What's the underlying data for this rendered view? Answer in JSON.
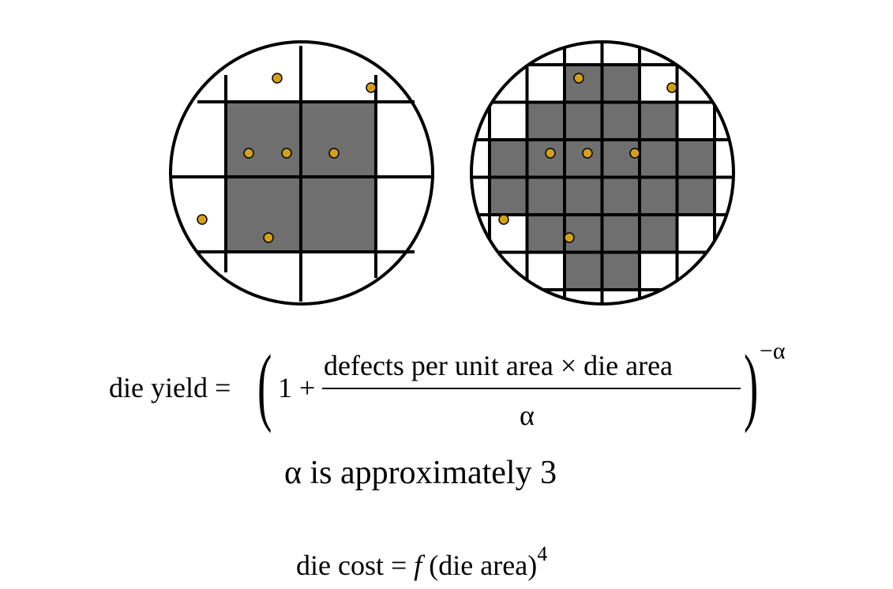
{
  "diagram": {
    "defect_color": "#d4a017",
    "die_fill_color": "#6f6f6f",
    "large_die_wafer": {
      "good_die_count": 4,
      "defect_count": 7
    },
    "small_die_wafer": {
      "good_die_count": 24,
      "defect_count": 7
    }
  },
  "equations": {
    "yield_lhs": "die yield =",
    "one_plus": "1 +",
    "numerator": "defects per unit area × die area",
    "denominator": "α",
    "exponent": "−α",
    "alpha_note": "α is approximately 3",
    "cost_lhs": "die cost = ",
    "cost_f": "f",
    "cost_rhs": " (die area)",
    "cost_exp": "4"
  }
}
